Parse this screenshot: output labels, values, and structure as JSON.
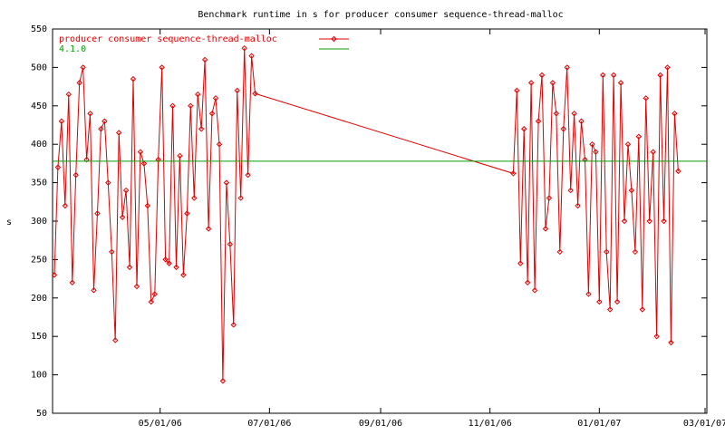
{
  "chart_data": {
    "type": "line",
    "title": "Benchmark runtime in s for producer consumer sequence-thread-malloc",
    "y_label": "s",
    "xlim": [
      "2006-03-02",
      "2007-03-02"
    ],
    "xticks": [
      {
        "value": "2006-05-01",
        "label": "05/01/06"
      },
      {
        "value": "2006-07-01",
        "label": "07/01/06"
      },
      {
        "value": "2006-09-01",
        "label": "09/01/06"
      },
      {
        "value": "2006-11-01",
        "label": "11/01/06"
      },
      {
        "value": "2007-01-01",
        "label": "01/01/07"
      },
      {
        "value": "2007-03-01",
        "label": "03/01/07"
      }
    ],
    "ylim": [
      50,
      550
    ],
    "yticks": [
      50,
      100,
      150,
      200,
      250,
      300,
      350,
      400,
      450,
      500,
      550
    ],
    "grid": false,
    "legend": "top-left",
    "series": [
      {
        "name": "producer consumer sequence-thread-malloc",
        "color": "#e00000",
        "markers": true,
        "x": [
          "2006-03-03",
          "2006-03-05",
          "2006-03-07",
          "2006-03-09",
          "2006-03-11",
          "2006-03-13",
          "2006-03-15",
          "2006-03-17",
          "2006-03-19",
          "2006-03-21",
          "2006-03-23",
          "2006-03-25",
          "2006-03-27",
          "2006-03-29",
          "2006-03-31",
          "2006-04-02",
          "2006-04-04",
          "2006-04-06",
          "2006-04-08",
          "2006-04-10",
          "2006-04-12",
          "2006-04-14",
          "2006-04-16",
          "2006-04-18",
          "2006-04-20",
          "2006-04-22",
          "2006-04-24",
          "2006-04-26",
          "2006-04-28",
          "2006-04-30",
          "2006-05-02",
          "2006-05-04",
          "2006-05-06",
          "2006-05-08",
          "2006-05-10",
          "2006-05-12",
          "2006-05-14",
          "2006-05-16",
          "2006-05-18",
          "2006-05-20",
          "2006-05-22",
          "2006-05-24",
          "2006-05-26",
          "2006-05-28",
          "2006-05-30",
          "2006-06-01",
          "2006-06-03",
          "2006-06-05",
          "2006-06-07",
          "2006-06-09",
          "2006-06-11",
          "2006-06-13",
          "2006-06-15",
          "2006-06-17",
          "2006-06-19",
          "2006-06-21",
          "2006-06-23",
          "2006-11-14",
          "2006-11-16",
          "2006-11-18",
          "2006-11-20",
          "2006-11-22",
          "2006-11-24",
          "2006-11-26",
          "2006-11-28",
          "2006-11-30",
          "2006-12-02",
          "2006-12-04",
          "2006-12-06",
          "2006-12-08",
          "2006-12-10",
          "2006-12-12",
          "2006-12-14",
          "2006-12-16",
          "2006-12-18",
          "2006-12-20",
          "2006-12-22",
          "2006-12-24",
          "2006-12-26",
          "2006-12-28",
          "2006-12-30",
          "2007-01-01",
          "2007-01-03",
          "2007-01-05",
          "2007-01-07",
          "2007-01-09",
          "2007-01-11",
          "2007-01-13",
          "2007-01-15",
          "2007-01-17",
          "2007-01-19",
          "2007-01-21",
          "2007-01-23",
          "2007-01-25",
          "2007-01-27",
          "2007-01-29",
          "2007-01-31",
          "2007-02-02",
          "2007-02-04",
          "2007-02-06",
          "2007-02-08",
          "2007-02-10",
          "2007-02-12",
          "2007-02-14"
        ],
        "values": [
          230,
          370,
          430,
          320,
          465,
          220,
          360,
          480,
          500,
          380,
          440,
          210,
          310,
          420,
          430,
          350,
          260,
          145,
          415,
          305,
          340,
          240,
          485,
          215,
          390,
          375,
          320,
          195,
          205,
          380,
          500,
          250,
          245,
          450,
          240,
          385,
          230,
          310,
          450,
          330,
          465,
          420,
          510,
          290,
          440,
          460,
          400,
          92,
          350,
          270,
          165,
          470,
          330,
          525,
          360,
          515,
          466,
          362,
          470,
          245,
          420,
          220,
          480,
          210,
          430,
          490,
          290,
          330,
          480,
          440,
          260,
          420,
          500,
          340,
          440,
          320,
          430,
          380,
          205,
          400,
          390,
          195,
          490,
          260,
          185,
          490,
          195,
          480,
          300,
          400,
          340,
          260,
          410,
          185,
          460,
          300,
          390,
          150,
          490,
          300,
          500,
          142,
          440,
          365
        ]
      },
      {
        "name": "4.1.0",
        "color": "#00a000",
        "markers": false,
        "x": [
          "2006-03-02",
          "2007-03-02"
        ],
        "values": [
          378,
          378
        ]
      }
    ]
  }
}
